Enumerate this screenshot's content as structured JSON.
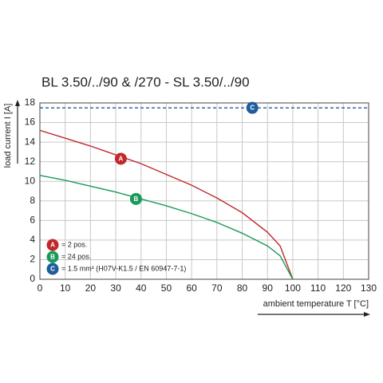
{
  "chart_data": {
    "type": "line",
    "title": "BL 3.50/../90 & /270 - SL 3.50/../90",
    "x_label": "ambient temperature T [°C]",
    "y_label": "load current I [A]",
    "xlim": [
      0,
      130
    ],
    "ylim": [
      0,
      18
    ],
    "xticks": [
      0,
      10,
      20,
      30,
      40,
      50,
      60,
      70,
      80,
      90,
      100,
      110,
      120,
      130
    ],
    "yticks": [
      0,
      2,
      4,
      6,
      8,
      10,
      12,
      14,
      16,
      18
    ],
    "grid": true,
    "series": [
      {
        "name": "= 2 pos.",
        "marker": "A",
        "color": "#c0282d",
        "style": "solid",
        "x": [
          0,
          10,
          20,
          30,
          40,
          50,
          60,
          70,
          80,
          90,
          95,
          100
        ],
        "values": [
          15.2,
          14.4,
          13.6,
          12.7,
          11.8,
          10.7,
          9.6,
          8.3,
          6.8,
          4.8,
          3.4,
          0
        ]
      },
      {
        "name": "= 24 pos.",
        "marker": "B",
        "color": "#1a9a5a",
        "style": "solid",
        "x": [
          0,
          10,
          20,
          30,
          40,
          50,
          60,
          70,
          80,
          90,
          95,
          100
        ],
        "values": [
          10.6,
          10.1,
          9.5,
          8.9,
          8.2,
          7.5,
          6.7,
          5.8,
          4.7,
          3.4,
          2.4,
          0
        ]
      },
      {
        "name": "= 1.5 mm² (H07V-K1.5 / EN 60947-7-1)",
        "marker": "C",
        "color": "#1f5c9c",
        "style": "dashed",
        "x": [
          0,
          130
        ],
        "values": [
          17.5,
          17.5
        ]
      }
    ]
  }
}
